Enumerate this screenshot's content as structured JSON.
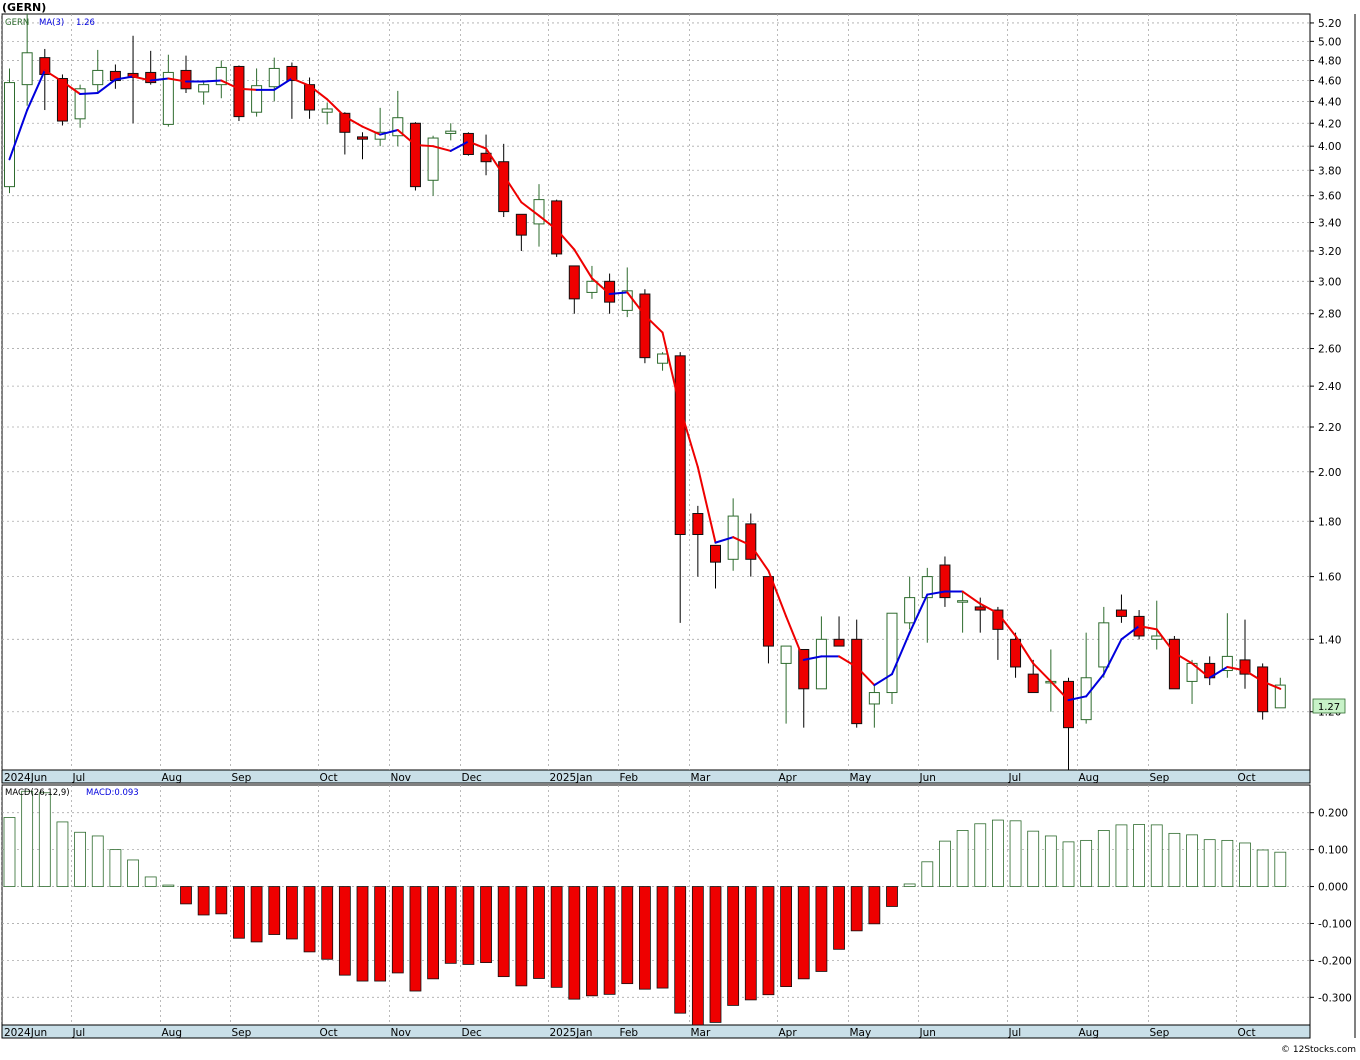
{
  "header": {
    "title": "(GERN)"
  },
  "footer": {
    "credit": "© 12Stocks.com"
  },
  "price_legend": {
    "symbol": "GERN",
    "ma_label": "MA(3)",
    "ma_value": "1.26"
  },
  "macd_legend": {
    "label": "MACD(26,12,9)",
    "value_label": "MACD:0.093"
  },
  "last_price_label": "1.27",
  "colors": {
    "up_candle_border": "#2e6b2e",
    "down_candle": "#ee0000",
    "ma_up": "#0000dd",
    "ma_down": "#ee0000",
    "macd_positive": "#2e6b2e",
    "macd_negative": "#ee0000",
    "axis_band": "#c9dfe8",
    "grid": "#aaaaaa",
    "last_price_bg": "#c8f2c8"
  },
  "chart_data": [
    {
      "type": "candlestick",
      "panel": "price",
      "title": "(GERN)",
      "interval": "weekly",
      "y_scale": "log",
      "ylim": [
        1.06,
        5.3
      ],
      "x_tick_labels": [
        "2024Jun",
        "Jul",
        "Aug",
        "Sep",
        "Oct",
        "Nov",
        "Dec",
        "2025Jan",
        "Feb",
        "Mar",
        "Apr",
        "May",
        "Jun",
        "Jul",
        "Aug",
        "Sep",
        "Oct"
      ],
      "x_tick_bar_index": [
        0,
        4,
        9,
        13,
        18,
        22,
        26,
        31,
        35,
        39,
        44,
        48,
        52,
        57,
        61,
        65,
        70
      ],
      "y_ticks": [
        1.2,
        1.4,
        1.6,
        1.8,
        2.0,
        2.2,
        2.4,
        2.6,
        2.8,
        3.0,
        3.2,
        3.4,
        3.6,
        3.8,
        4.0,
        4.2,
        4.4,
        4.6,
        4.8,
        5.0,
        5.2
      ],
      "y_tick_labels": [
        "1.20",
        "1.40",
        "1.60",
        "1.80",
        "2.00",
        "2.20",
        "2.40",
        "2.60",
        "2.80",
        "3.00",
        "3.20",
        "3.40",
        "3.60",
        "3.80",
        "4.00",
        "4.20",
        "4.40",
        "4.60",
        "4.80",
        "5.00",
        "5.20"
      ],
      "grid": true,
      "candles": [
        {
          "o": 3.67,
          "h": 4.72,
          "l": 3.62,
          "c": 4.58
        },
        {
          "o": 4.56,
          "h": 5.3,
          "l": 4.36,
          "c": 4.88
        },
        {
          "o": 4.83,
          "h": 4.92,
          "l": 4.32,
          "c": 4.66
        },
        {
          "o": 4.62,
          "h": 4.66,
          "l": 4.18,
          "c": 4.22
        },
        {
          "o": 4.24,
          "h": 4.56,
          "l": 4.16,
          "c": 4.52
        },
        {
          "o": 4.56,
          "h": 4.91,
          "l": 4.49,
          "c": 4.7
        },
        {
          "o": 4.69,
          "h": 4.76,
          "l": 4.52,
          "c": 4.6
        },
        {
          "o": 4.67,
          "h": 5.06,
          "l": 4.2,
          "c": 4.63
        },
        {
          "o": 4.68,
          "h": 4.9,
          "l": 4.56,
          "c": 4.58
        },
        {
          "o": 4.19,
          "h": 4.86,
          "l": 4.17,
          "c": 4.68
        },
        {
          "o": 4.7,
          "h": 4.85,
          "l": 4.48,
          "c": 4.52
        },
        {
          "o": 4.49,
          "h": 4.6,
          "l": 4.37,
          "c": 4.56
        },
        {
          "o": 4.56,
          "h": 4.8,
          "l": 4.43,
          "c": 4.73
        },
        {
          "o": 4.74,
          "h": 4.75,
          "l": 4.22,
          "c": 4.26
        },
        {
          "o": 4.3,
          "h": 4.72,
          "l": 4.26,
          "c": 4.55
        },
        {
          "o": 4.54,
          "h": 4.83,
          "l": 4.4,
          "c": 4.72
        },
        {
          "o": 4.74,
          "h": 4.78,
          "l": 4.24,
          "c": 4.6
        },
        {
          "o": 4.56,
          "h": 4.63,
          "l": 4.24,
          "c": 4.32
        },
        {
          "o": 4.3,
          "h": 4.39,
          "l": 4.19,
          "c": 4.33
        },
        {
          "o": 4.29,
          "h": 4.3,
          "l": 3.93,
          "c": 4.12
        },
        {
          "o": 4.08,
          "h": 4.12,
          "l": 3.89,
          "c": 4.06
        },
        {
          "o": 4.06,
          "h": 4.34,
          "l": 4.0,
          "c": 4.12
        },
        {
          "o": 4.09,
          "h": 4.5,
          "l": 4.0,
          "c": 4.25
        },
        {
          "o": 4.2,
          "h": 4.21,
          "l": 3.64,
          "c": 3.67
        },
        {
          "o": 3.72,
          "h": 4.09,
          "l": 3.6,
          "c": 4.07
        },
        {
          "o": 4.11,
          "h": 4.2,
          "l": 4.05,
          "c": 4.13
        },
        {
          "o": 4.11,
          "h": 4.12,
          "l": 3.92,
          "c": 3.93
        },
        {
          "o": 3.94,
          "h": 4.1,
          "l": 3.76,
          "c": 3.87
        },
        {
          "o": 3.87,
          "h": 4.02,
          "l": 3.44,
          "c": 3.48
        },
        {
          "o": 3.46,
          "h": 3.46,
          "l": 3.2,
          "c": 3.31
        },
        {
          "o": 3.39,
          "h": 3.69,
          "l": 3.23,
          "c": 3.57
        },
        {
          "o": 3.56,
          "h": 3.57,
          "l": 3.16,
          "c": 3.18
        },
        {
          "o": 3.1,
          "h": 3.1,
          "l": 2.8,
          "c": 2.89
        },
        {
          "o": 2.93,
          "h": 3.1,
          "l": 2.89,
          "c": 3.0
        },
        {
          "o": 3.0,
          "h": 3.05,
          "l": 2.8,
          "c": 2.87
        },
        {
          "o": 2.82,
          "h": 3.09,
          "l": 2.78,
          "c": 2.94
        },
        {
          "o": 2.92,
          "h": 2.95,
          "l": 2.52,
          "c": 2.55
        },
        {
          "o": 2.52,
          "h": 2.58,
          "l": 2.48,
          "c": 2.57
        },
        {
          "o": 2.56,
          "h": 2.58,
          "l": 1.45,
          "c": 1.75
        },
        {
          "o": 1.83,
          "h": 1.86,
          "l": 1.6,
          "c": 1.75
        },
        {
          "o": 1.71,
          "h": 1.71,
          "l": 1.56,
          "c": 1.65
        },
        {
          "o": 1.66,
          "h": 1.89,
          "l": 1.62,
          "c": 1.82
        },
        {
          "o": 1.79,
          "h": 1.83,
          "l": 1.6,
          "c": 1.66
        },
        {
          "o": 1.6,
          "h": 1.6,
          "l": 1.33,
          "c": 1.38
        },
        {
          "o": 1.33,
          "h": 1.38,
          "l": 1.17,
          "c": 1.38
        },
        {
          "o": 1.37,
          "h": 1.37,
          "l": 1.16,
          "c": 1.26
        },
        {
          "o": 1.26,
          "h": 1.47,
          "l": 1.26,
          "c": 1.4
        },
        {
          "o": 1.4,
          "h": 1.47,
          "l": 1.38,
          "c": 1.38
        },
        {
          "o": 1.4,
          "h": 1.46,
          "l": 1.16,
          "c": 1.17
        },
        {
          "o": 1.22,
          "h": 1.27,
          "l": 1.16,
          "c": 1.25
        },
        {
          "o": 1.25,
          "h": 1.48,
          "l": 1.22,
          "c": 1.48
        },
        {
          "o": 1.45,
          "h": 1.6,
          "l": 1.43,
          "c": 1.53
        },
        {
          "o": 1.53,
          "h": 1.63,
          "l": 1.39,
          "c": 1.6
        },
        {
          "o": 1.64,
          "h": 1.67,
          "l": 1.5,
          "c": 1.53
        },
        {
          "o": 1.52,
          "h": 1.55,
          "l": 1.42,
          "c": 1.52
        },
        {
          "o": 1.5,
          "h": 1.53,
          "l": 1.42,
          "c": 1.49
        },
        {
          "o": 1.49,
          "h": 1.5,
          "l": 1.34,
          "c": 1.43
        },
        {
          "o": 1.4,
          "h": 1.42,
          "l": 1.29,
          "c": 1.32
        },
        {
          "o": 1.3,
          "h": 1.34,
          "l": 1.25,
          "c": 1.25
        },
        {
          "o": 1.28,
          "h": 1.37,
          "l": 1.2,
          "c": 1.28
        },
        {
          "o": 1.28,
          "h": 1.29,
          "l": 1.06,
          "c": 1.16
        },
        {
          "o": 1.18,
          "h": 1.42,
          "l": 1.17,
          "c": 1.29
        },
        {
          "o": 1.32,
          "h": 1.5,
          "l": 1.29,
          "c": 1.45
        },
        {
          "o": 1.49,
          "h": 1.54,
          "l": 1.45,
          "c": 1.47
        },
        {
          "o": 1.47,
          "h": 1.49,
          "l": 1.4,
          "c": 1.41
        },
        {
          "o": 1.4,
          "h": 1.52,
          "l": 1.37,
          "c": 1.41
        },
        {
          "o": 1.4,
          "h": 1.41,
          "l": 1.26,
          "c": 1.26
        },
        {
          "o": 1.28,
          "h": 1.34,
          "l": 1.22,
          "c": 1.33
        },
        {
          "o": 1.33,
          "h": 1.35,
          "l": 1.27,
          "c": 1.29
        },
        {
          "o": 1.31,
          "h": 1.48,
          "l": 1.29,
          "c": 1.35
        },
        {
          "o": 1.34,
          "h": 1.46,
          "l": 1.26,
          "c": 1.3
        },
        {
          "o": 1.32,
          "h": 1.33,
          "l": 1.18,
          "c": 1.2
        },
        {
          "o": 1.21,
          "h": 1.29,
          "l": 1.21,
          "c": 1.27
        }
      ],
      "ma3": [
        3.89,
        4.32,
        4.7,
        4.59,
        4.47,
        4.48,
        4.61,
        4.64,
        4.6,
        4.62,
        4.59,
        4.59,
        4.6,
        4.52,
        4.51,
        4.51,
        4.62,
        4.55,
        4.42,
        4.26,
        4.17,
        4.1,
        4.14,
        4.01,
        4.0,
        3.96,
        4.04,
        3.98,
        3.76,
        3.55,
        3.45,
        3.35,
        3.21,
        3.02,
        2.92,
        2.93,
        2.79,
        2.69,
        2.29,
        2.02,
        1.72,
        1.74,
        1.71,
        1.62,
        1.47,
        1.34,
        1.35,
        1.35,
        1.32,
        1.27,
        1.3,
        1.42,
        1.54,
        1.55,
        1.55,
        1.51,
        1.48,
        1.41,
        1.33,
        1.28,
        1.23,
        1.24,
        1.3,
        1.4,
        1.44,
        1.43,
        1.36,
        1.33,
        1.29,
        1.32,
        1.31,
        1.28,
        1.26
      ]
    },
    {
      "type": "bar",
      "panel": "macd",
      "title": "MACD(26,12,9)",
      "ylim": [
        -0.375,
        0.275
      ],
      "y_ticks": [
        -0.3,
        -0.2,
        -0.1,
        0.0,
        0.1,
        0.2
      ],
      "y_tick_labels": [
        "-0.300",
        "-0.200",
        "-0.100",
        "0.000",
        "0.100",
        "0.200"
      ],
      "grid": true,
      "x_tick_labels": [
        "2024Jun",
        "Jul",
        "Aug",
        "Sep",
        "Oct",
        "Nov",
        "Dec",
        "2025Jan",
        "Feb",
        "Mar",
        "Apr",
        "May",
        "Jun",
        "Jul",
        "Aug",
        "Sep",
        "Oct"
      ],
      "values": [
        0.187,
        0.258,
        0.254,
        0.175,
        0.147,
        0.137,
        0.1,
        0.072,
        0.026,
        0.004,
        -0.047,
        -0.077,
        -0.074,
        -0.14,
        -0.15,
        -0.13,
        -0.142,
        -0.177,
        -0.197,
        -0.24,
        -0.256,
        -0.256,
        -0.234,
        -0.283,
        -0.25,
        -0.208,
        -0.211,
        -0.206,
        -0.244,
        -0.269,
        -0.249,
        -0.273,
        -0.305,
        -0.296,
        -0.292,
        -0.263,
        -0.278,
        -0.275,
        -0.343,
        -0.375,
        -0.368,
        -0.322,
        -0.307,
        -0.293,
        -0.271,
        -0.25,
        -0.23,
        -0.17,
        -0.12,
        -0.101,
        -0.054,
        0.007,
        0.067,
        0.123,
        0.152,
        0.17,
        0.18,
        0.178,
        0.15,
        0.137,
        0.121,
        0.125,
        0.152,
        0.167,
        0.168,
        0.167,
        0.144,
        0.14,
        0.127,
        0.125,
        0.118,
        0.099,
        0.093
      ]
    }
  ]
}
